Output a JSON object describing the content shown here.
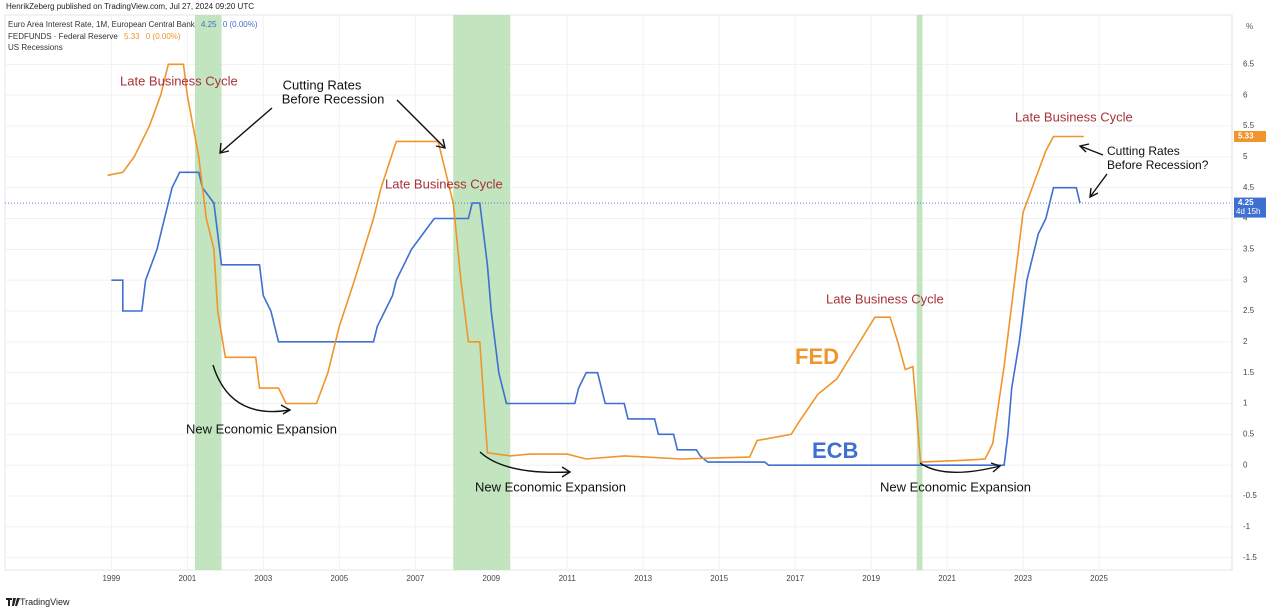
{
  "chart_data": {
    "type": "line",
    "header": "HenrikZeberg published on TradingView.com, Jul 27, 2024 09:20 UTC",
    "footer": "TradingView",
    "axis_unit": "%",
    "xlim": [
      1996.2,
      2028.5
    ],
    "xticks": [
      1999,
      2001,
      2003,
      2005,
      2007,
      2009,
      2011,
      2013,
      2015,
      2017,
      2019,
      2021,
      2023,
      2025
    ],
    "ylim": [
      -1.7,
      7.3
    ],
    "yticks": [
      -1.5,
      -1,
      -0.5,
      0,
      0.5,
      1,
      1.5,
      2,
      2.5,
      3,
      3.5,
      4,
      4.5,
      5,
      5.5,
      6,
      6.5
    ],
    "recessions": {
      "name": "US Recessions",
      "color": "#b7dfb4",
      "spans": [
        [
          2001.2,
          2001.9
        ],
        [
          2008.0,
          2009.5
        ],
        [
          2020.2,
          2020.35
        ]
      ]
    },
    "series": [
      {
        "name": "Euro Area Interest Rate, 1M, European Central Bank",
        "color": "#3f6fd0",
        "last_value": 4.25,
        "change_label": "0 (0.00%)",
        "countdown": "4d 15h",
        "x": [
          1999.0,
          1999.3,
          1999.3,
          1999.8,
          1999.9,
          2000.2,
          2000.3,
          2000.5,
          2000.6,
          2000.8,
          2001.3,
          2001.4,
          2001.7,
          2001.8,
          2001.9,
          2002.9,
          2003.0,
          2003.2,
          2003.4,
          2005.9,
          2006.0,
          2006.2,
          2006.4,
          2006.5,
          2006.7,
          2006.9,
          2007.2,
          2007.5,
          2008.4,
          2008.5,
          2008.7,
          2008.8,
          2008.9,
          2009.0,
          2009.1,
          2009.2,
          2009.3,
          2009.4,
          2011.2,
          2011.3,
          2011.5,
          2011.8,
          2011.9,
          2012.0,
          2012.5,
          2012.6,
          2013.3,
          2013.4,
          2013.8,
          2013.9,
          2014.4,
          2014.5,
          2014.7,
          2016.2,
          2016.3,
          2022.5,
          2022.6,
          2022.7,
          2022.9,
          2023.0,
          2023.1,
          2023.3,
          2023.4,
          2023.6,
          2023.7,
          2023.8,
          2024.4,
          2024.5
        ],
        "values": [
          3.0,
          3.0,
          2.5,
          2.5,
          3.0,
          3.5,
          3.75,
          4.25,
          4.5,
          4.75,
          4.75,
          4.5,
          4.25,
          3.75,
          3.25,
          3.25,
          2.75,
          2.5,
          2.0,
          2.0,
          2.25,
          2.5,
          2.75,
          3.0,
          3.25,
          3.5,
          3.75,
          4.0,
          4.0,
          4.25,
          4.25,
          3.75,
          3.25,
          2.5,
          2.0,
          1.5,
          1.25,
          1.0,
          1.0,
          1.25,
          1.5,
          1.5,
          1.25,
          1.0,
          1.0,
          0.75,
          0.75,
          0.5,
          0.5,
          0.25,
          0.25,
          0.15,
          0.05,
          0.05,
          0,
          0,
          0.5,
          1.25,
          2.0,
          2.5,
          3.0,
          3.5,
          3.75,
          4.0,
          4.25,
          4.5,
          4.5,
          4.25
        ]
      },
      {
        "name": "FEDFUNDS · Federal Reserve",
        "color": "#f0952b",
        "last_value": 5.33,
        "change_label": "0 (0.00%)",
        "x": [
          1998.9,
          1999.3,
          1999.6,
          2000.0,
          2000.3,
          2000.5,
          2000.9,
          2001.0,
          2001.3,
          2001.5,
          2001.7,
          2001.8,
          2002.0,
          2002.8,
          2002.9,
          2003.4,
          2003.6,
          2004.4,
          2004.7,
          2005.0,
          2005.4,
          2005.9,
          2006.1,
          2006.5,
          2007.6,
          2007.8,
          2008.0,
          2008.2,
          2008.4,
          2008.7,
          2008.9,
          2009.5,
          2010.0,
          2011.0,
          2011.5,
          2012.5,
          2014.0,
          2015.0,
          2015.8,
          2016.0,
          2016.9,
          2017.1,
          2017.6,
          2018.1,
          2018.6,
          2019.1,
          2019.5,
          2019.7,
          2019.9,
          2020.1,
          2020.3,
          2021.5,
          2022.0,
          2022.2,
          2022.5,
          2022.8,
          2023.0,
          2023.3,
          2023.6,
          2023.8,
          2024.6
        ],
        "values": [
          4.7,
          4.75,
          5.0,
          5.5,
          6.0,
          6.5,
          6.5,
          6.0,
          5.0,
          4.0,
          3.5,
          2.5,
          1.75,
          1.75,
          1.25,
          1.25,
          1.0,
          1.0,
          1.5,
          2.25,
          3.0,
          4.0,
          4.5,
          5.25,
          5.25,
          4.75,
          4.25,
          3.0,
          2.0,
          2.0,
          0.2,
          0.15,
          0.18,
          0.18,
          0.1,
          0.15,
          0.1,
          0.12,
          0.13,
          0.4,
          0.5,
          0.7,
          1.15,
          1.4,
          1.9,
          2.4,
          2.4,
          2.0,
          1.55,
          1.6,
          0.05,
          0.08,
          0.1,
          0.35,
          1.6,
          3.1,
          4.1,
          4.6,
          5.1,
          5.33,
          5.33
        ]
      }
    ],
    "annotations": [
      {
        "text": "Late Business Cycle",
        "color": "#a8323a"
      },
      {
        "text": "Cutting Rates",
        "color": "#111111"
      },
      {
        "text": "Before Recession",
        "color": "#111111"
      },
      {
        "text": "Late Business Cycle",
        "color": "#a8323a"
      },
      {
        "text": "New Economic Expansion",
        "color": "#111111"
      },
      {
        "text": "New Economic Expansion",
        "color": "#111111"
      },
      {
        "text": "FED",
        "color": "#f0952b"
      },
      {
        "text": "ECB",
        "color": "#3f6fd0"
      },
      {
        "text": "Late Business Cycle",
        "color": "#a8323a"
      },
      {
        "text": "New Economic Expansion",
        "color": "#111111"
      },
      {
        "text": "Late Business Cycle",
        "color": "#a8323a"
      },
      {
        "text": "Cutting Rates",
        "color": "#111111"
      },
      {
        "text": "Before Recession?",
        "color": "#111111"
      }
    ]
  }
}
